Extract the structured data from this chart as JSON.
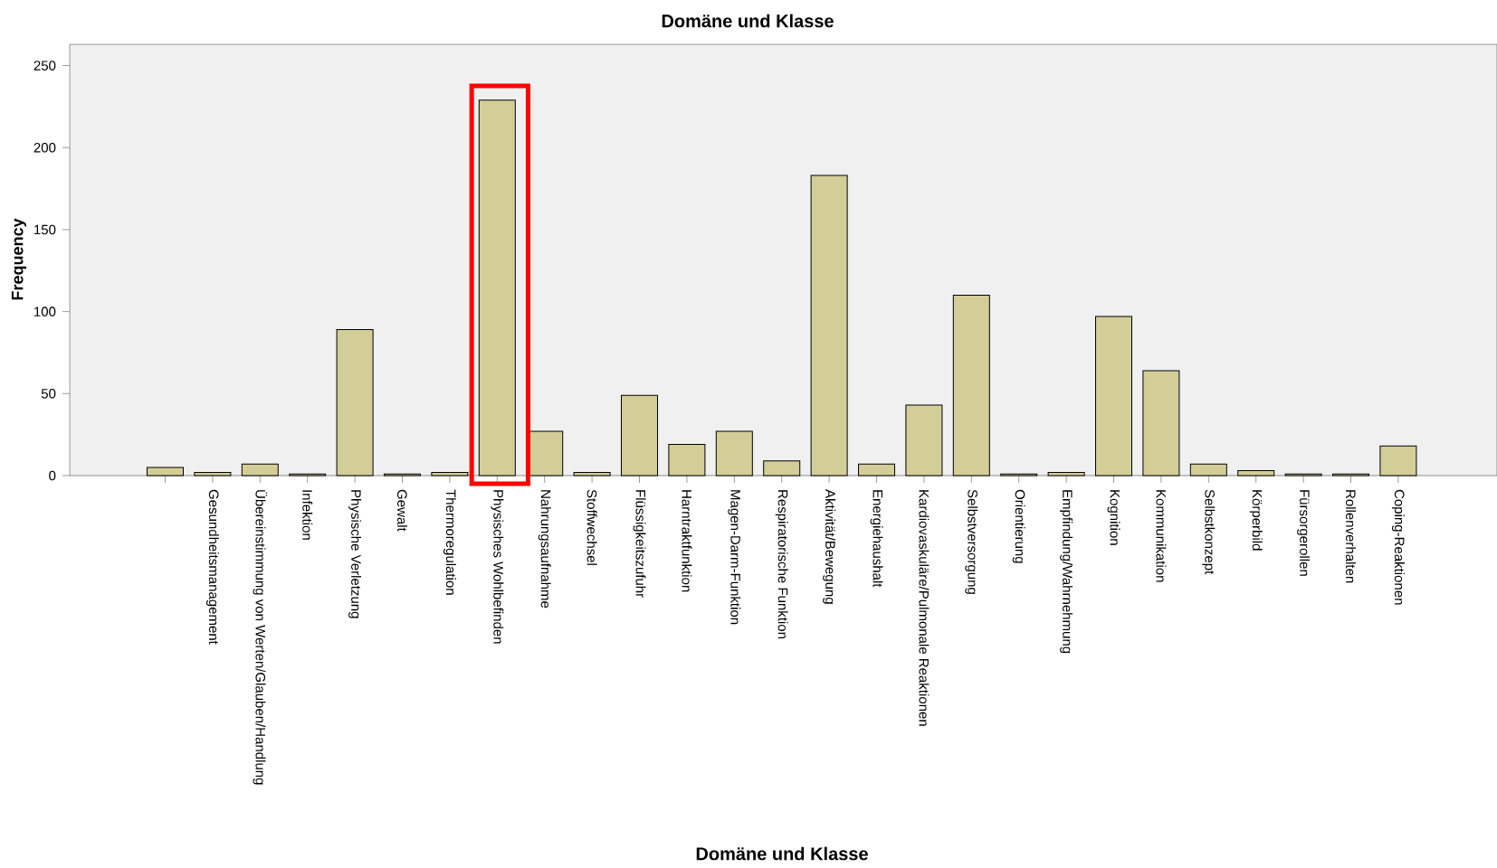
{
  "chart_data": {
    "type": "bar",
    "title": "Domäne und Klasse",
    "xlabel": "Domäne und Klasse",
    "ylabel": "Frequency",
    "categories": [
      null,
      "Gesundheitsmanagement",
      "Übereinstimmung von Werten/Glauben/Handlung",
      "Infektion",
      "Physische Verletzung",
      "Gewalt",
      "Thermoregulation",
      "Physisches Wohlbefinden",
      "Nahrungsaufnahme",
      "Stoffwechsel",
      "Flüssigkeitszufuhr",
      "Harntraktfunktion",
      "Magen-Darm-Funktion",
      "Respiratorische Funktion",
      "Aktivität/Bewegung",
      "Energiehaushalt",
      "Kardiovaskuläre/Pulmonale Reaktionen",
      "Selbstversorgung",
      "Orientierung",
      "Empfindung/Wahrnehmung",
      "Kognition",
      "Kommunikation",
      "Selbstkonzept",
      "Körperbild",
      "Fürsorgerollen",
      "Rollenverhalten",
      "Coping-Reaktionen"
    ],
    "values": [
      5,
      2,
      7,
      1,
      89,
      1,
      2,
      229,
      27,
      2,
      49,
      19,
      27,
      9,
      183,
      7,
      43,
      110,
      1,
      2,
      97,
      64,
      7,
      3,
      1,
      1,
      18
    ],
    "color": "#d3ce98",
    "ylim": [
      0,
      263
    ],
    "yticks": [
      0,
      50,
      100,
      150,
      200,
      250
    ]
  }
}
